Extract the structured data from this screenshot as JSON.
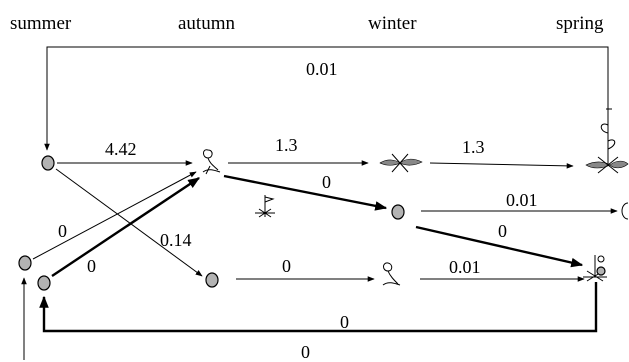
{
  "seasons": {
    "summer": "summer",
    "autumn": "autumn",
    "winter": "winter",
    "spring": "spring"
  },
  "edges": {
    "spring_to_summer": "0.01",
    "summer_to_autumn_upper": "4.42",
    "autumn_to_winter": "1.3",
    "winter_to_spring": "1.3",
    "autumn_to_winter_lower": "0",
    "winter_lower_to_right": "0.01",
    "winter_lower_to_spring_lower": "0",
    "summer_lower_to_autumn": "0",
    "summer_far_to_autumn": "0",
    "summer_to_autumn_lower": "0.14",
    "autumn_lower_to_winter_plant": "0",
    "winter_plant_to_spring_lower": "0.01",
    "spring_lower_to_summer_lower": "0",
    "bottom_loop": "0"
  },
  "colors": {
    "node_fill": "#b3b3b3",
    "line": "#000000",
    "background": "#ffffff"
  },
  "icons": {
    "autumn_upper": "sprouting-seed-icon",
    "winter_upper": "rosette-icon",
    "spring_upper": "flowering-plant-icon",
    "autumn_mid": "small-seedling-icon",
    "winter_lower": "sprouting-seed-icon",
    "spring_lower": "seedling-rosette-icon"
  }
}
